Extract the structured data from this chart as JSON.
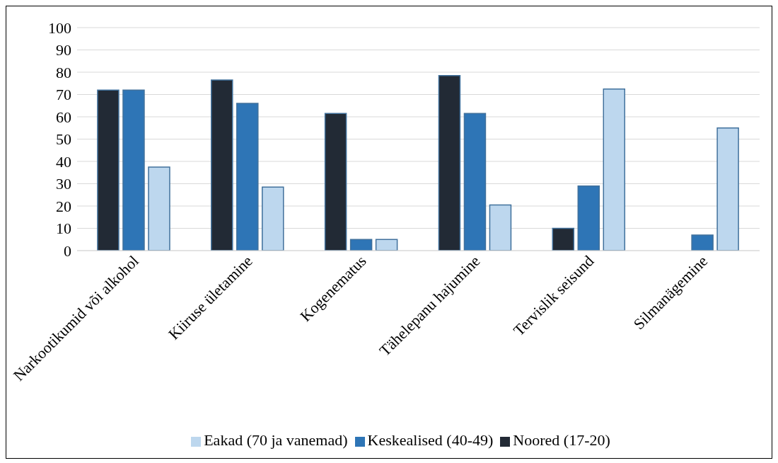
{
  "chart_data": {
    "type": "bar",
    "categories": [
      "Narkootikumid või alkohol",
      "Kiiruse ületamine",
      "Kogenematus",
      "Tähelepanu hajumine",
      "Tervislik seisund",
      "Silmanägemine"
    ],
    "series": [
      {
        "name": "Noored (17-20)",
        "color": "#222a35",
        "values": [
          72,
          76.5,
          61.5,
          78.5,
          10,
          0
        ]
      },
      {
        "name": "Keskealised (40-49)",
        "color": "#2e75b6",
        "values": [
          72,
          66,
          5,
          61.5,
          29,
          7
        ]
      },
      {
        "name": "Eakad (70 ja vanemad)",
        "color": "#bdd7ee",
        "values": [
          37.5,
          28.5,
          5,
          20.5,
          72.5,
          55
        ]
      }
    ],
    "ylim": [
      0,
      100
    ],
    "yticks": [
      0,
      10,
      20,
      30,
      40,
      50,
      60,
      70,
      80,
      90,
      100
    ],
    "grid": "y",
    "legend": "bottom"
  }
}
